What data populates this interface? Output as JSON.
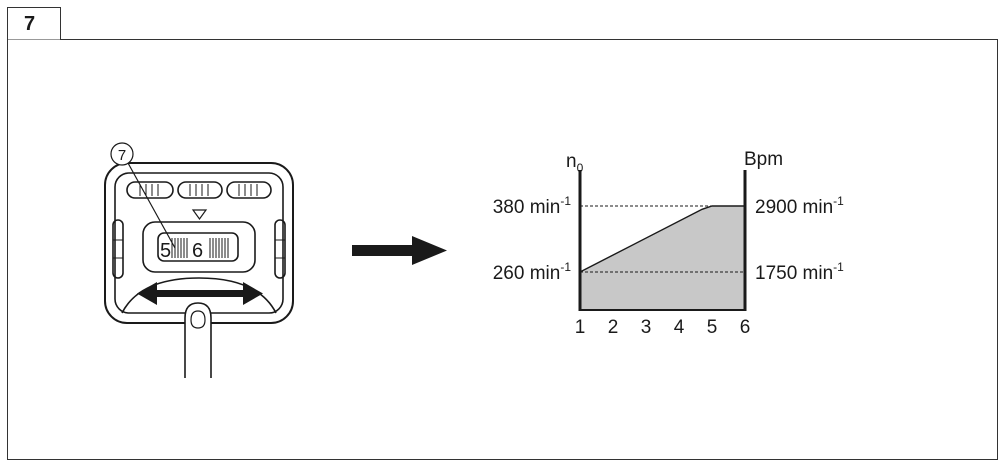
{
  "figure": {
    "number": "7"
  },
  "callout": {
    "number": "7"
  },
  "dial": {
    "digit_left": "5",
    "digit_right": "6"
  },
  "chart_data": {
    "type": "area",
    "x": [
      1,
      2,
      3,
      4,
      5,
      6
    ],
    "xticks": [
      "1",
      "2",
      "3",
      "4",
      "5",
      "6"
    ],
    "left_axis_label": {
      "base": "n",
      "sub": "0"
    },
    "right_axis_label": "Bpm",
    "left_ticks": [
      {
        "value": 380,
        "text": "380 min",
        "sup": "-1"
      },
      {
        "value": 260,
        "text": "260 min",
        "sup": "-1"
      }
    ],
    "right_ticks": [
      {
        "value": 2900,
        "text": "2900 min",
        "sup": "-1"
      },
      {
        "value": 1750,
        "text": "1750 min",
        "sup": "-1"
      }
    ],
    "series": [
      {
        "x": [
          1,
          4.7,
          5,
          6
        ],
        "y": [
          260,
          374,
          380,
          380
        ]
      }
    ],
    "ylim_left": [
      180,
      450
    ],
    "xlim": [
      1,
      6
    ],
    "fill_color": "#c8c8c8",
    "reference_lines": "dashed"
  }
}
